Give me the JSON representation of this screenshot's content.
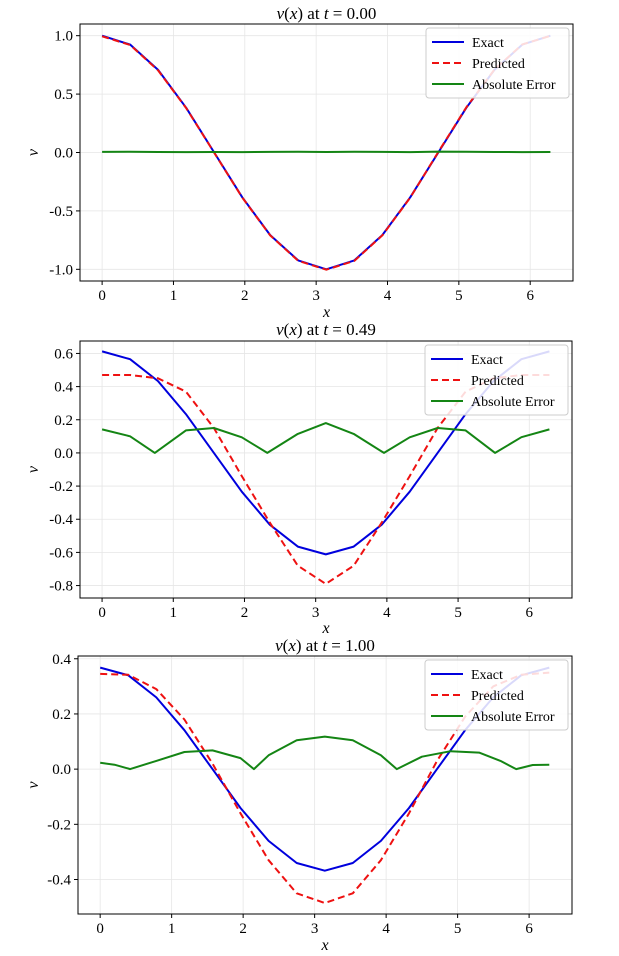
{
  "chart_data": [
    {
      "type": "line",
      "title_var": "v",
      "title_arg": "x",
      "title_mid": " at ",
      "title_t": "t",
      "title_eq": " = ",
      "title_val": "0.00",
      "xlabel": "x",
      "ylabel": "v",
      "xlim": [
        -0.31,
        6.6
      ],
      "ylim": [
        -1.1,
        1.1
      ],
      "xticks": [
        0,
        1,
        2,
        3,
        4,
        5,
        6
      ],
      "xtick_labels": [
        "0",
        "1",
        "2",
        "3",
        "4",
        "5",
        "6"
      ],
      "yticks": [
        1.0,
        0.5,
        0.0,
        -0.5,
        -1.0
      ],
      "ytick_labels": [
        "1.0",
        "0.5",
        "0.0",
        "-0.5",
        "-1.0"
      ],
      "legend": [
        "Exact",
        "Predicted",
        "Absolute Error"
      ],
      "legend_position": "top-right",
      "grid": true,
      "series": [
        {
          "name": "Exact",
          "color": "#0000dd",
          "style": "solid",
          "x": [
            0,
            0.393,
            0.785,
            1.178,
            1.571,
            1.963,
            2.356,
            2.749,
            3.142,
            3.534,
            3.927,
            4.32,
            4.712,
            5.105,
            5.498,
            5.89,
            6.283
          ],
          "y": [
            1.0,
            0.924,
            0.707,
            0.383,
            0.0,
            -0.383,
            -0.707,
            -0.924,
            -1.0,
            -0.924,
            -0.707,
            -0.383,
            0.0,
            0.383,
            0.707,
            0.924,
            1.0
          ]
        },
        {
          "name": "Predicted",
          "color": "#ee1111",
          "style": "dashed",
          "x": [
            0,
            0.393,
            0.785,
            1.178,
            1.571,
            1.963,
            2.356,
            2.749,
            3.142,
            3.534,
            3.927,
            4.32,
            4.712,
            5.105,
            5.498,
            5.89,
            6.283
          ],
          "y": [
            0.995,
            0.92,
            0.703,
            0.38,
            -0.002,
            -0.385,
            -0.71,
            -0.927,
            -1.003,
            -0.928,
            -0.71,
            -0.385,
            0.004,
            0.386,
            0.71,
            0.925,
            0.998
          ]
        },
        {
          "name": "Absolute Error",
          "color": "#148514",
          "style": "solid",
          "x": [
            0,
            0.393,
            0.785,
            1.178,
            1.571,
            1.963,
            2.356,
            2.749,
            3.142,
            3.534,
            3.927,
            4.32,
            4.712,
            5.105,
            5.498,
            5.89,
            6.283
          ],
          "y": [
            0.005,
            0.006,
            0.004,
            0.003,
            0.004,
            0.003,
            0.005,
            0.006,
            0.004,
            0.007,
            0.005,
            0.003,
            0.008,
            0.006,
            0.004,
            0.003,
            0.004
          ]
        }
      ]
    },
    {
      "type": "line",
      "title_var": "v",
      "title_arg": "x",
      "title_mid": " at ",
      "title_t": "t",
      "title_eq": " = ",
      "title_val": "0.49",
      "xlabel": "x",
      "ylabel": "v",
      "xlim": [
        -0.31,
        6.6
      ],
      "ylim": [
        -0.875,
        0.675
      ],
      "xticks": [
        0,
        1,
        2,
        3,
        4,
        5,
        6
      ],
      "xtick_labels": [
        "0",
        "1",
        "2",
        "3",
        "4",
        "5",
        "6"
      ],
      "yticks": [
        0.6,
        0.4,
        0.2,
        0.0,
        -0.2,
        -0.4,
        -0.6,
        -0.8
      ],
      "ytick_labels": [
        "0.6",
        "0.4",
        "0.2",
        "0.0",
        "-0.2",
        "-0.4",
        "-0.6",
        "-0.8"
      ],
      "legend": [
        "Exact",
        "Predicted",
        "Absolute Error"
      ],
      "legend_position": "top-right",
      "grid": true,
      "series": [
        {
          "name": "Exact",
          "color": "#0000dd",
          "style": "solid",
          "x": [
            0,
            0.393,
            0.785,
            1.178,
            1.571,
            1.963,
            2.356,
            2.749,
            3.142,
            3.534,
            3.927,
            4.32,
            4.712,
            5.105,
            5.498,
            5.89,
            6.283
          ],
          "y": [
            0.612,
            0.565,
            0.433,
            0.234,
            0.0,
            -0.234,
            -0.433,
            -0.565,
            -0.612,
            -0.565,
            -0.433,
            -0.234,
            0.0,
            0.234,
            0.433,
            0.565,
            0.612
          ]
        },
        {
          "name": "Predicted",
          "color": "#ee1111",
          "style": "dashed",
          "x": [
            0,
            0.393,
            0.785,
            1.178,
            1.571,
            1.963,
            2.356,
            2.749,
            3.142,
            3.534,
            3.927,
            4.32,
            4.712,
            5.105,
            5.498,
            5.89,
            6.283
          ],
          "y": [
            0.47,
            0.47,
            0.45,
            0.37,
            0.15,
            -0.14,
            -0.42,
            -0.68,
            -0.79,
            -0.68,
            -0.42,
            -0.14,
            0.15,
            0.37,
            0.45,
            0.47,
            0.47
          ]
        },
        {
          "name": "Absolute Error",
          "color": "#148514",
          "style": "solid",
          "x": [
            0,
            0.393,
            0.74,
            1.178,
            1.571,
            1.963,
            2.32,
            2.749,
            3.142,
            3.534,
            3.96,
            4.32,
            4.712,
            5.105,
            5.52,
            5.89,
            6.283
          ],
          "y": [
            0.142,
            0.1,
            0.0,
            0.136,
            0.15,
            0.094,
            0.0,
            0.115,
            0.18,
            0.115,
            0.0,
            0.094,
            0.15,
            0.136,
            0.0,
            0.095,
            0.142
          ]
        }
      ]
    },
    {
      "type": "line",
      "title_var": "v",
      "title_arg": "x",
      "title_mid": " at ",
      "title_t": "t",
      "title_eq": " = ",
      "title_val": "1.00",
      "xlabel": "x",
      "ylabel": "v",
      "xlim": [
        -0.31,
        6.6
      ],
      "ylim": [
        -0.525,
        0.41
      ],
      "xticks": [
        0,
        1,
        2,
        3,
        4,
        5,
        6
      ],
      "xtick_labels": [
        "0",
        "1",
        "2",
        "3",
        "4",
        "5",
        "6"
      ],
      "yticks": [
        0.4,
        0.2,
        0.0,
        -0.2,
        -0.4
      ],
      "ytick_labels": [
        "0.4",
        "0.2",
        "0.0",
        "-0.2",
        "-0.4"
      ],
      "legend": [
        "Exact",
        "Predicted",
        "Absolute Error"
      ],
      "legend_position": "top-right",
      "grid": true,
      "series": [
        {
          "name": "Exact",
          "color": "#0000dd",
          "style": "solid",
          "x": [
            0,
            0.393,
            0.785,
            1.178,
            1.571,
            1.963,
            2.356,
            2.749,
            3.142,
            3.534,
            3.927,
            4.32,
            4.712,
            5.105,
            5.498,
            5.89,
            6.283
          ],
          "y": [
            0.368,
            0.34,
            0.26,
            0.141,
            0.0,
            -0.141,
            -0.26,
            -0.34,
            -0.368,
            -0.34,
            -0.26,
            -0.141,
            0.0,
            0.141,
            0.26,
            0.34,
            0.368
          ]
        },
        {
          "name": "Predicted",
          "color": "#ee1111",
          "style": "dashed",
          "x": [
            0,
            0.393,
            0.785,
            1.178,
            1.571,
            1.963,
            2.356,
            2.749,
            3.142,
            3.534,
            3.927,
            4.32,
            4.712,
            5.105,
            5.498,
            5.89,
            6.283
          ],
          "y": [
            0.345,
            0.342,
            0.29,
            0.18,
            0.02,
            -0.16,
            -0.33,
            -0.45,
            -0.485,
            -0.45,
            -0.33,
            -0.16,
            0.03,
            0.19,
            0.3,
            0.342,
            0.35
          ]
        },
        {
          "name": "Absolute Error",
          "color": "#148514",
          "style": "solid",
          "x": [
            0,
            0.2,
            0.42,
            0.785,
            1.178,
            1.571,
            1.963,
            2.15,
            2.356,
            2.749,
            3.142,
            3.534,
            3.927,
            4.15,
            4.5,
            4.9,
            5.3,
            5.6,
            5.82,
            6.05,
            6.283
          ],
          "y": [
            0.023,
            0.016,
            0.0,
            0.03,
            0.062,
            0.068,
            0.04,
            0.0,
            0.05,
            0.105,
            0.118,
            0.105,
            0.05,
            0.0,
            0.045,
            0.065,
            0.06,
            0.03,
            0.0,
            0.015,
            0.016
          ]
        }
      ]
    }
  ]
}
